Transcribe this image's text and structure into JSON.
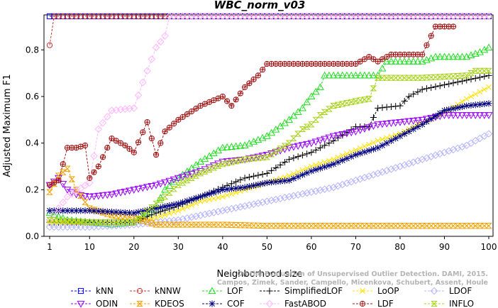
{
  "chart_data": {
    "type": "line",
    "title": "WBC_norm_v03",
    "xlabel": "Neighborhood size",
    "ylabel": "Adjusted Maximum F1",
    "xlim": [
      0,
      100
    ],
    "ylim": [
      0,
      0.95
    ],
    "xticks": [
      1,
      10,
      20,
      30,
      40,
      50,
      60,
      70,
      80,
      90,
      100
    ],
    "yticks": [
      0.0,
      0.2,
      0.4,
      0.6,
      0.8
    ],
    "ytick_labels": [
      "0.0",
      "0.2",
      "0.4",
      "0.6",
      "0.8"
    ],
    "grid": false,
    "legend_position": "bottom",
    "watermark": [
      "Campos, Zimek, Sander, Campello, Micenkova, Schubert, Assent, Houle",
      "On the Evaluation of Unsupervised Outlier Detection. DAMI, 2015."
    ],
    "series": [
      {
        "name": "kNN",
        "color": "#0000ff",
        "marker": "square",
        "dash": "dashed",
        "points": [
          [
            1,
            0.944
          ],
          [
            100,
            0.944
          ]
        ]
      },
      {
        "name": "kNNW",
        "color": "#c83232",
        "marker": "circle",
        "dash": "dashed",
        "points": [
          [
            1,
            0.82
          ],
          [
            2,
            0.944
          ],
          [
            100,
            0.944
          ]
        ]
      },
      {
        "name": "LOF",
        "color": "#22dd22",
        "marker": "triangle",
        "dash": "dashed",
        "points": [
          [
            1,
            0.1
          ],
          [
            5,
            0.07
          ],
          [
            10,
            0.06
          ],
          [
            15,
            0.05
          ],
          [
            20,
            0.06
          ],
          [
            23,
            0.1
          ],
          [
            25,
            0.13
          ],
          [
            27,
            0.2
          ],
          [
            30,
            0.25
          ],
          [
            35,
            0.32
          ],
          [
            40,
            0.38
          ],
          [
            45,
            0.39
          ],
          [
            50,
            0.43
          ],
          [
            55,
            0.5
          ],
          [
            58,
            0.55
          ],
          [
            60,
            0.6
          ],
          [
            62,
            0.64
          ],
          [
            63,
            0.69
          ],
          [
            70,
            0.69
          ],
          [
            75,
            0.69
          ],
          [
            77,
            0.75
          ],
          [
            85,
            0.75
          ],
          [
            88,
            0.77
          ],
          [
            95,
            0.77
          ],
          [
            98,
            0.79
          ],
          [
            100,
            0.81
          ]
        ]
      },
      {
        "name": "SimplifiedLOF",
        "color": "#000000",
        "marker": "plus",
        "dash": "dashed",
        "points": [
          [
            1,
            0.06
          ],
          [
            10,
            0.06
          ],
          [
            20,
            0.06
          ],
          [
            25,
            0.1
          ],
          [
            30,
            0.13
          ],
          [
            35,
            0.17
          ],
          [
            40,
            0.21
          ],
          [
            45,
            0.25
          ],
          [
            50,
            0.27
          ],
          [
            55,
            0.33
          ],
          [
            60,
            0.36
          ],
          [
            65,
            0.41
          ],
          [
            70,
            0.47
          ],
          [
            73,
            0.47
          ],
          [
            75,
            0.55
          ],
          [
            80,
            0.56
          ],
          [
            82,
            0.6
          ],
          [
            85,
            0.63
          ],
          [
            90,
            0.65
          ],
          [
            95,
            0.67
          ],
          [
            100,
            0.69
          ]
        ]
      },
      {
        "name": "LoOP",
        "color": "#ffe000",
        "marker": "x",
        "dash": "dashed",
        "points": [
          [
            1,
            0.06
          ],
          [
            10,
            0.06
          ],
          [
            20,
            0.06
          ],
          [
            25,
            0.08
          ],
          [
            30,
            0.11
          ],
          [
            35,
            0.15
          ],
          [
            40,
            0.17
          ],
          [
            45,
            0.2
          ],
          [
            50,
            0.23
          ],
          [
            55,
            0.26
          ],
          [
            60,
            0.3
          ],
          [
            65,
            0.33
          ],
          [
            70,
            0.37
          ],
          [
            75,
            0.41
          ],
          [
            80,
            0.44
          ],
          [
            85,
            0.49
          ],
          [
            90,
            0.53
          ],
          [
            95,
            0.59
          ],
          [
            100,
            0.64
          ]
        ]
      },
      {
        "name": "LDOF",
        "color": "#b4b4ff",
        "marker": "diamond",
        "dash": "dashed",
        "points": [
          [
            1,
            0.04
          ],
          [
            10,
            0.04
          ],
          [
            20,
            0.05
          ],
          [
            25,
            0.06
          ],
          [
            30,
            0.07
          ],
          [
            35,
            0.09
          ],
          [
            40,
            0.11
          ],
          [
            45,
            0.13
          ],
          [
            50,
            0.15
          ],
          [
            55,
            0.17
          ],
          [
            60,
            0.19
          ],
          [
            65,
            0.21
          ],
          [
            70,
            0.24
          ],
          [
            75,
            0.27
          ],
          [
            80,
            0.3
          ],
          [
            85,
            0.33
          ],
          [
            90,
            0.36
          ],
          [
            95,
            0.39
          ],
          [
            100,
            0.44
          ]
        ]
      },
      {
        "name": "ODIN",
        "color": "#9600ff",
        "marker": "triangle-down",
        "dash": "dashed",
        "points": [
          [
            1,
            0.22
          ],
          [
            3,
            0.25
          ],
          [
            5,
            0.2
          ],
          [
            7,
            0.18
          ],
          [
            10,
            0.17
          ],
          [
            15,
            0.18
          ],
          [
            20,
            0.2
          ],
          [
            25,
            0.22
          ],
          [
            30,
            0.25
          ],
          [
            35,
            0.28
          ],
          [
            40,
            0.32
          ],
          [
            45,
            0.33
          ],
          [
            50,
            0.35
          ],
          [
            55,
            0.38
          ],
          [
            60,
            0.4
          ],
          [
            65,
            0.43
          ],
          [
            70,
            0.45
          ],
          [
            75,
            0.48
          ],
          [
            80,
            0.49
          ],
          [
            85,
            0.5
          ],
          [
            90,
            0.52
          ],
          [
            95,
            0.52
          ],
          [
            100,
            0.52
          ]
        ]
      },
      {
        "name": "KDEOS",
        "color": "#f0a000",
        "marker": "hourglass",
        "dash": "dashed",
        "points": [
          [
            1,
            0.19
          ],
          [
            3,
            0.26
          ],
          [
            5,
            0.29
          ],
          [
            7,
            0.2
          ],
          [
            10,
            0.12
          ],
          [
            15,
            0.09
          ],
          [
            20,
            0.08
          ],
          [
            25,
            0.05
          ],
          [
            30,
            0.05
          ],
          [
            40,
            0.05
          ],
          [
            50,
            0.045
          ],
          [
            60,
            0.045
          ],
          [
            70,
            0.045
          ],
          [
            80,
            0.045
          ],
          [
            90,
            0.045
          ],
          [
            100,
            0.045
          ]
        ]
      },
      {
        "name": "COF",
        "color": "#000080",
        "marker": "star",
        "dash": "dashed",
        "points": [
          [
            1,
            0.11
          ],
          [
            10,
            0.11
          ],
          [
            20,
            0.1
          ],
          [
            25,
            0.12
          ],
          [
            30,
            0.14
          ],
          [
            35,
            0.17
          ],
          [
            40,
            0.2
          ],
          [
            45,
            0.21
          ],
          [
            50,
            0.23
          ],
          [
            55,
            0.24
          ],
          [
            60,
            0.28
          ],
          [
            65,
            0.31
          ],
          [
            70,
            0.35
          ],
          [
            75,
            0.38
          ],
          [
            80,
            0.43
          ],
          [
            85,
            0.48
          ],
          [
            90,
            0.54
          ],
          [
            95,
            0.56
          ],
          [
            100,
            0.57
          ]
        ]
      },
      {
        "name": "FastABOD",
        "color": "#ffb4ff",
        "marker": "diamond",
        "dash": "dashed",
        "points": [
          [
            1,
            0.07
          ],
          [
            5,
            0.17
          ],
          [
            10,
            0.23
          ],
          [
            12,
            0.46
          ],
          [
            15,
            0.54
          ],
          [
            20,
            0.55
          ],
          [
            22,
            0.66
          ],
          [
            25,
            0.81
          ],
          [
            27,
            0.86
          ],
          [
            28,
            0.944
          ],
          [
            100,
            0.944
          ]
        ]
      },
      {
        "name": "LDF",
        "color": "#a01414",
        "marker": "circle-plus",
        "dash": "dashed",
        "points": [
          [
            1,
            0.22
          ],
          [
            3,
            0.24
          ],
          [
            5,
            0.38
          ],
          [
            7,
            0.38
          ],
          [
            9,
            0.39
          ],
          [
            10,
            0.25
          ],
          [
            12,
            0.3
          ],
          [
            15,
            0.42
          ],
          [
            18,
            0.39
          ],
          [
            20,
            0.36
          ],
          [
            23,
            0.49
          ],
          [
            25,
            0.35
          ],
          [
            27,
            0.45
          ],
          [
            30,
            0.5
          ],
          [
            35,
            0.56
          ],
          [
            40,
            0.6
          ],
          [
            42,
            0.56
          ],
          [
            45,
            0.64
          ],
          [
            48,
            0.69
          ],
          [
            50,
            0.74
          ],
          [
            60,
            0.74
          ],
          [
            70,
            0.74
          ],
          [
            73,
            0.77
          ],
          [
            75,
            0.75
          ],
          [
            78,
            0.78
          ],
          [
            85,
            0.78
          ],
          [
            88,
            0.9
          ],
          [
            92,
            0.9
          ]
        ]
      },
      {
        "name": "INFLO",
        "color": "#a8d21a",
        "marker": "hourglass",
        "dash": "dashed",
        "points": [
          [
            1,
            0.07
          ],
          [
            10,
            0.06
          ],
          [
            20,
            0.06
          ],
          [
            25,
            0.14
          ],
          [
            27,
            0.17
          ],
          [
            30,
            0.22
          ],
          [
            35,
            0.27
          ],
          [
            40,
            0.31
          ],
          [
            45,
            0.33
          ],
          [
            50,
            0.34
          ],
          [
            55,
            0.4
          ],
          [
            58,
            0.46
          ],
          [
            60,
            0.48
          ],
          [
            62,
            0.52
          ],
          [
            65,
            0.56
          ],
          [
            70,
            0.58
          ],
          [
            73,
            0.59
          ],
          [
            75,
            0.68
          ],
          [
            85,
            0.68
          ],
          [
            95,
            0.69
          ],
          [
            97,
            0.71
          ],
          [
            100,
            0.71
          ]
        ]
      }
    ]
  }
}
